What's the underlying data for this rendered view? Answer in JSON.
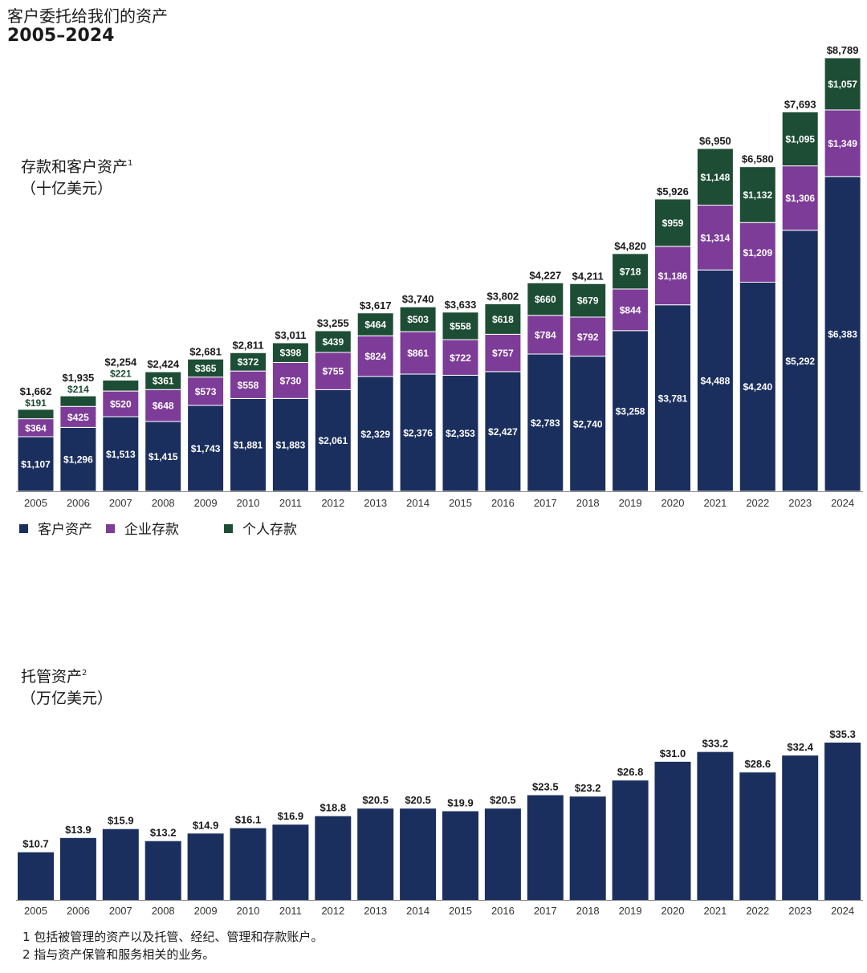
{
  "title": "客户委托给我们的资产",
  "years_range": "2005–2024",
  "colors": {
    "client_assets": "#1b2f5e",
    "corporate_deposits": "#7d3c98",
    "personal_deposits": "#1e4d35"
  },
  "chart1_label": {
    "line1": "存款和客户资产",
    "sup": "1",
    "line2": "（十亿美元）"
  },
  "chart2_label": {
    "line1": "托管资产",
    "sup": "2",
    "line2": "（万亿美元）"
  },
  "footnotes": [
    "1 包括被管理的资产以及托管、经纪、管理和存款账户。",
    "2 指与资产保管和服务相关的业务。"
  ],
  "chart_data": [
    {
      "type": "bar",
      "stacked": true,
      "ylabel": "存款和客户资产 (十亿美元)",
      "categories": [
        "2005",
        "2006",
        "2007",
        "2008",
        "2009",
        "2010",
        "2011",
        "2012",
        "2013",
        "2014",
        "2015",
        "2016",
        "2017",
        "2018",
        "2019",
        "2020",
        "2021",
        "2022",
        "2023",
        "2024"
      ],
      "series": [
        {
          "name": "客户资产",
          "key": "client_assets",
          "values": [
            1107,
            1296,
            1513,
            1415,
            1743,
            1881,
            1883,
            2061,
            2329,
            2376,
            2353,
            2427,
            2783,
            2740,
            3258,
            3781,
            4488,
            4240,
            5292,
            6383
          ]
        },
        {
          "name": "企业存款",
          "key": "corporate_deposits",
          "values": [
            364,
            425,
            520,
            648,
            573,
            558,
            730,
            755,
            824,
            861,
            722,
            757,
            784,
            792,
            844,
            1186,
            1314,
            1209,
            1306,
            1349
          ]
        },
        {
          "name": "个人存款",
          "key": "personal_deposits",
          "values": [
            191,
            214,
            221,
            361,
            365,
            372,
            398,
            439,
            464,
            503,
            558,
            618,
            660,
            679,
            718,
            959,
            1148,
            1132,
            1095,
            1057
          ]
        }
      ],
      "totals": [
        1662,
        1935,
        2254,
        2424,
        2681,
        2811,
        3011,
        3255,
        3617,
        3740,
        3633,
        3802,
        4227,
        4211,
        4820,
        5926,
        6950,
        6580,
        7693,
        8789
      ],
      "legend": "bottom-left",
      "value_prefix": "$"
    },
    {
      "type": "bar",
      "ylabel": "托管资产 (万亿美元)",
      "categories": [
        "2005",
        "2006",
        "2007",
        "2008",
        "2009",
        "2010",
        "2011",
        "2012",
        "2013",
        "2014",
        "2015",
        "2016",
        "2017",
        "2018",
        "2019",
        "2020",
        "2021",
        "2022",
        "2023",
        "2024"
      ],
      "values": [
        10.7,
        13.9,
        15.9,
        13.2,
        14.9,
        16.1,
        16.9,
        18.8,
        20.5,
        20.5,
        19.9,
        20.5,
        23.5,
        23.2,
        26.8,
        31.0,
        33.2,
        28.6,
        32.4,
        35.3
      ],
      "value_prefix": "$",
      "decimals": 1
    }
  ]
}
